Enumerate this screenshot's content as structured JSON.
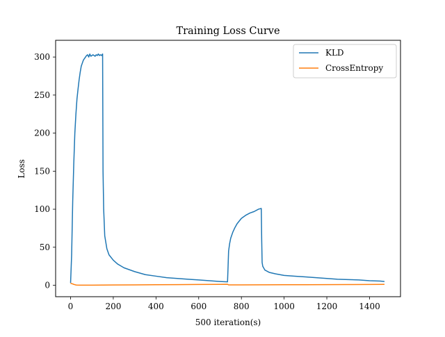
{
  "chart_data": {
    "type": "line",
    "title": "Training Loss Curve",
    "xlabel": "500 iteration(s)",
    "ylabel": "Loss",
    "xlim": [
      -70,
      1545
    ],
    "ylim": [
      -15,
      322
    ],
    "xticks": [
      0,
      200,
      400,
      600,
      800,
      1000,
      1200,
      1400
    ],
    "yticks": [
      0,
      50,
      100,
      150,
      200,
      250,
      300
    ],
    "grid": false,
    "legend_position": "top-right",
    "series": [
      {
        "name": "KLD",
        "color": "#1f77b4",
        "x": [
          0,
          5,
          10,
          15,
          20,
          25,
          30,
          35,
          40,
          45,
          50,
          55,
          60,
          65,
          70,
          75,
          80,
          85,
          90,
          95,
          100,
          105,
          110,
          115,
          120,
          125,
          130,
          135,
          140,
          145,
          150,
          152,
          155,
          160,
          170,
          180,
          200,
          220,
          250,
          300,
          350,
          400,
          450,
          500,
          550,
          600,
          650,
          700,
          735,
          737,
          740,
          745,
          750,
          760,
          770,
          780,
          800,
          820,
          840,
          860,
          880,
          893,
          895,
          897,
          900,
          910,
          930,
          960,
          1000,
          1050,
          1100,
          1150,
          1200,
          1250,
          1300,
          1350,
          1400,
          1450,
          1470
        ],
        "y": [
          3,
          40,
          110,
          160,
          200,
          225,
          245,
          258,
          270,
          280,
          288,
          292,
          296,
          298,
          300,
          302,
          303,
          300,
          304,
          301,
          302,
          303,
          302,
          301,
          303,
          302,
          304,
          302,
          303,
          302,
          304,
          150,
          100,
          65,
          48,
          40,
          33,
          28,
          23,
          18,
          14,
          12,
          10,
          9,
          8,
          7,
          6,
          5,
          4.5,
          20,
          45,
          55,
          62,
          70,
          76,
          81,
          88,
          92,
          95,
          97,
          100,
          101,
          60,
          30,
          25,
          20,
          17,
          15,
          13,
          12,
          11,
          10,
          9,
          8,
          7.5,
          7,
          6,
          5.5,
          5
        ]
      },
      {
        "name": "CrossEntropy",
        "color": "#ff7f0e",
        "x": [
          0,
          5,
          10,
          15,
          20,
          25,
          30,
          40,
          60,
          100,
          150,
          200,
          300,
          400,
          500,
          600,
          700,
          735,
          740,
          800,
          900,
          1000,
          1100,
          1200,
          1300,
          1400,
          1470
        ],
        "y": [
          2.5,
          2.2,
          1.8,
          1.2,
          0.8,
          0.4,
          0.3,
          0.2,
          0.2,
          0.2,
          0.3,
          0.4,
          0.5,
          0.7,
          0.9,
          1.1,
          1.2,
          1.3,
          0.5,
          0.5,
          0.6,
          0.7,
          0.8,
          0.9,
          1.0,
          1.1,
          1.2
        ]
      }
    ]
  }
}
